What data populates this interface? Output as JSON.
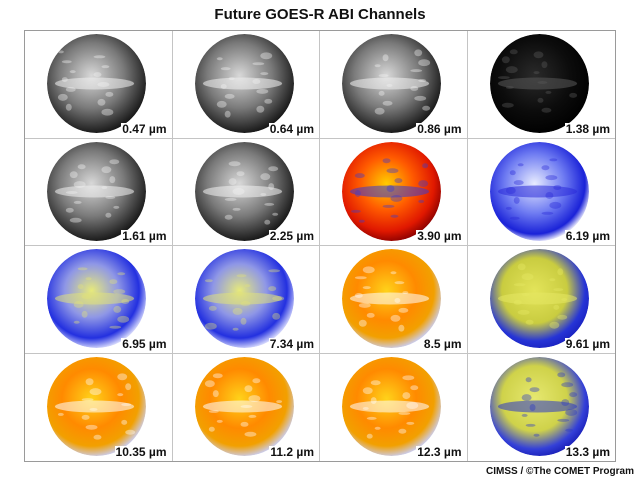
{
  "title": "Future GOES-R ABI Channels",
  "credit": "CIMSS / ©The COMET Program",
  "channels": [
    {
      "label": "0.47 µm",
      "style": "vis"
    },
    {
      "label": "0.64 µm",
      "style": "vis"
    },
    {
      "label": "0.86 µm",
      "style": "vis"
    },
    {
      "label": "1.38 µm",
      "style": "dark"
    },
    {
      "label": "1.61 µm",
      "style": "vis"
    },
    {
      "label": "2.25 µm",
      "style": "vis"
    },
    {
      "label": "3.90 µm",
      "style": "hot"
    },
    {
      "label": "6.19 µm",
      "style": "wv"
    },
    {
      "label": "6.95 µm",
      "style": "wvy"
    },
    {
      "label": "7.34 µm",
      "style": "wvy"
    },
    {
      "label": "8.5 µm",
      "style": "ir"
    },
    {
      "label": "9.61 µm",
      "style": "oz"
    },
    {
      "label": "10.35 µm",
      "style": "ir"
    },
    {
      "label": "11.2 µm",
      "style": "ir"
    },
    {
      "label": "12.3 µm",
      "style": "ir"
    },
    {
      "label": "13.3 µm",
      "style": "co2"
    }
  ]
}
